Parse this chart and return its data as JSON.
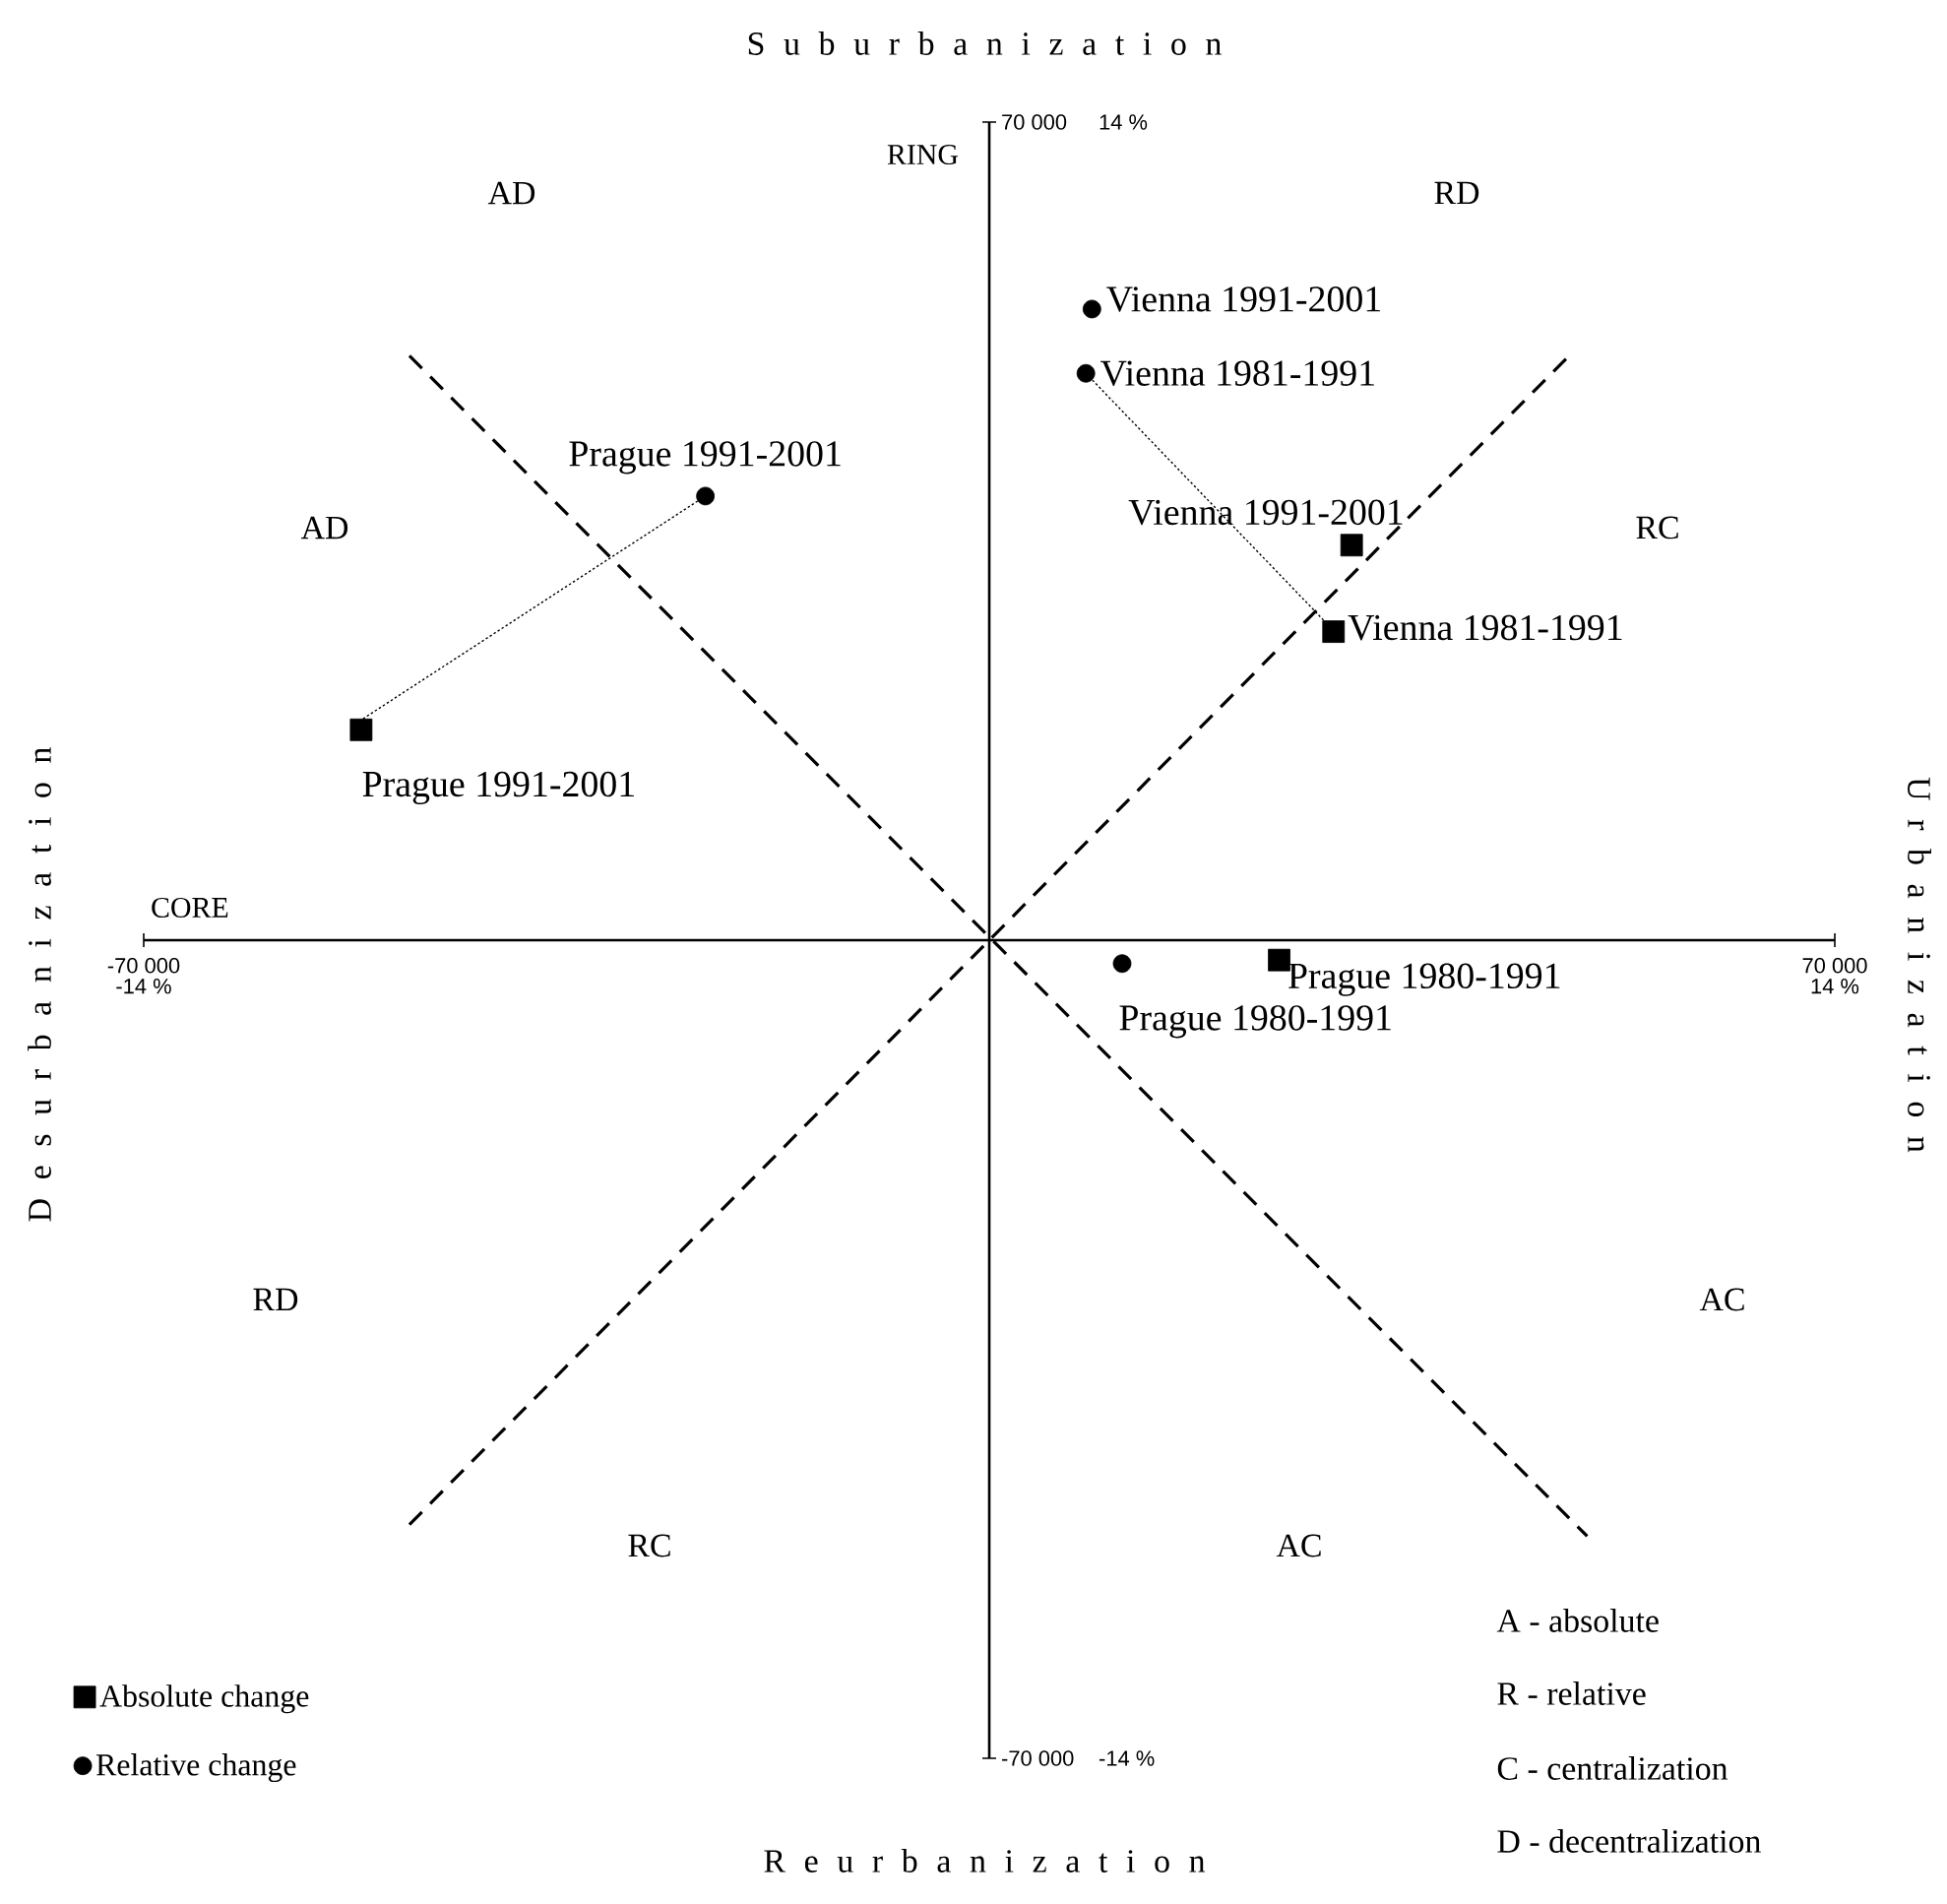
{
  "chart_data": [
    {
      "type": "scatter",
      "xlabel": "CORE",
      "ylabel": "RING",
      "xlim": [
        -70000,
        70000
      ],
      "ylim": [
        -70000,
        70000
      ],
      "xticks": [
        {
          "value": -70000,
          "label": "-70 000"
        },
        {
          "value": 70000,
          "label": "70 000"
        }
      ],
      "yticks": [
        {
          "value": -70000,
          "label": "-70 000"
        },
        {
          "value": 70000,
          "label": "70 000"
        }
      ],
      "legend": "bottom left",
      "series": [
        {
          "name": "Absolute change",
          "type": "scatter",
          "marker": "square",
          "color": "#000000",
          "x": [
            -52000,
            28500,
            30000,
            24000
          ],
          "values": [
            18000,
            26400,
            33800,
            -1700
          ],
          "value_labels": [
            "Prague 1991-2001",
            "Vienna 1981-1991",
            "Vienna 1991-2001",
            "Prague 1980-1991"
          ]
        },
        {
          "type": "line",
          "line_style": "dashed",
          "color": "#000000",
          "x": [
            -48000,
            49500
          ],
          "values": [
            50000,
            -51000
          ]
        },
        {
          "type": "line",
          "line_style": "dashed",
          "color": "#000000",
          "x": [
            -48000,
            48000
          ],
          "values": [
            -50000,
            50000
          ]
        }
      ],
      "annotations": [
        "S u b u r b a n i z a t i o n",
        "R e u r b a n i z a t i o n",
        "U r b a n i z a t i o n",
        "D e s u r b a n i z a t i o n",
        "AD",
        "RD",
        "AD",
        "RC",
        "RD",
        "AC",
        "RC",
        "AC",
        "A - absolute",
        "R - relative",
        "C - centralization",
        "D - decentralization"
      ]
    },
    {
      "type": "scatter",
      "xlim": [
        -14,
        14
      ],
      "ylim": [
        -14,
        14
      ],
      "xticks": [
        {
          "value": -14,
          "label": "-14 %"
        },
        {
          "value": 14,
          "label": "14 %"
        }
      ],
      "yticks": [
        {
          "value": -14,
          "label": "-14 %"
        },
        {
          "value": 14,
          "label": "14 %"
        }
      ],
      "legend": "bottom left",
      "series": [
        {
          "name": "Relative change",
          "type": "scatter",
          "marker": "circle",
          "color": "#000000",
          "x": [
            -4.7,
            1.6,
            1.7,
            2.2
          ],
          "values": [
            7.6,
            9.7,
            10.8,
            -0.4
          ],
          "value_labels": [
            "Prague 1991-2001",
            "Vienna 1981-1991",
            "Vienna 1991-2001",
            "Prague 1980-1991"
          ]
        },
        {
          "type": "line",
          "line_style": "dotted",
          "color": "#000000",
          "x": [
            -10.5,
            -4.7
          ],
          "values": [
            3.7,
            7.6
          ]
        },
        {
          "type": "line",
          "line_style": "dotted",
          "color": "#000000",
          "x": [
            1.6,
            5.7
          ],
          "values": [
            9.7,
            5.3
          ]
        }
      ]
    }
  ]
}
